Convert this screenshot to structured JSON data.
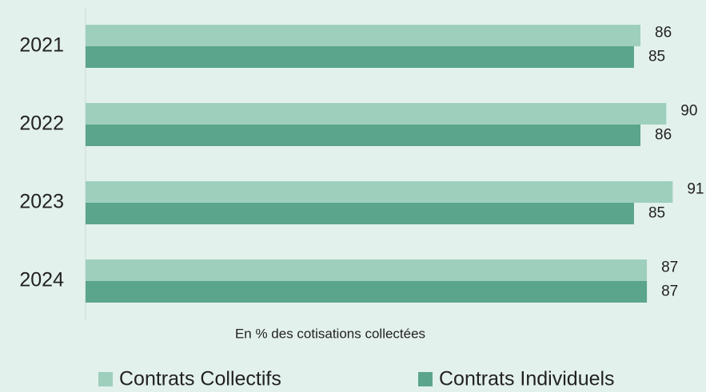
{
  "chart_data": {
    "type": "hbar",
    "categories": [
      "2021",
      "2022",
      "2023",
      "2024"
    ],
    "series": [
      {
        "name": "Contrats Collectifs",
        "color": "#9ecfbd",
        "values": [
          86,
          90,
          91,
          87
        ]
      },
      {
        "name": "Contrats Individuels",
        "color": "#5aa58c",
        "values": [
          85,
          86,
          85,
          87
        ]
      }
    ],
    "xlim": [
      0,
      100
    ],
    "xlabel": "En % des cotisations collectées"
  }
}
